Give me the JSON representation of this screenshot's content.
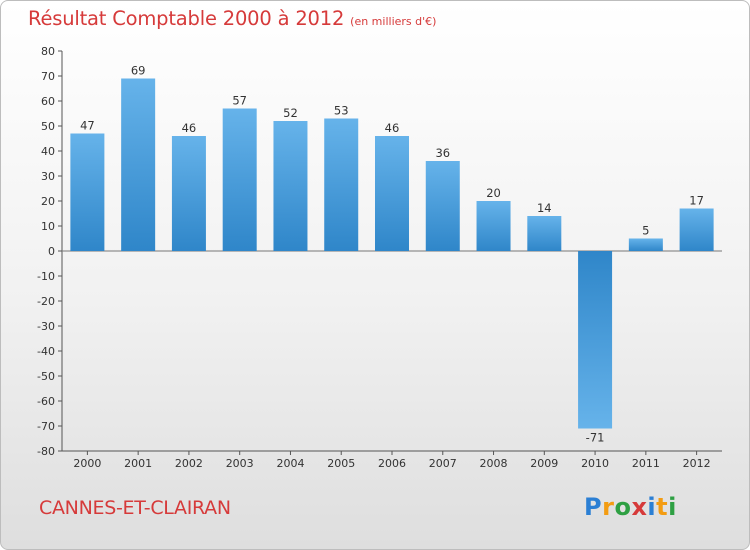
{
  "title": "Résultat Comptable 2000 à 2012",
  "subtitle": "(en milliers d'€)",
  "commune": "CANNES-ET-CLAIRAN",
  "logo": {
    "text": "Proxiti",
    "letters": [
      {
        "ch": "P",
        "color": "#2b7fd4"
      },
      {
        "ch": "r",
        "color": "#f39c12"
      },
      {
        "ch": "o",
        "color": "#2ea043"
      },
      {
        "ch": "x",
        "color": "#d63a3a"
      },
      {
        "ch": "i",
        "color": "#2b7fd4"
      },
      {
        "ch": "t",
        "color": "#f39c12"
      },
      {
        "ch": "i",
        "color": "#2ea043"
      }
    ]
  },
  "colors": {
    "bar_light": "#66b3ea",
    "bar_dark": "#2f86c9",
    "title": "#d63a3a"
  },
  "chart_data": {
    "type": "bar",
    "title": "Résultat Comptable 2000 à 2012",
    "subtitle": "(en milliers d'€)",
    "xlabel": "",
    "ylabel": "",
    "categories": [
      "2000",
      "2001",
      "2002",
      "2003",
      "2004",
      "2005",
      "2006",
      "2007",
      "2008",
      "2009",
      "2010",
      "2011",
      "2012"
    ],
    "values": [
      47,
      69,
      46,
      57,
      52,
      53,
      46,
      36,
      20,
      14,
      -71,
      5,
      17
    ],
    "ylim": [
      -80,
      80
    ],
    "yticks": [
      80,
      70,
      60,
      50,
      40,
      30,
      20,
      10,
      0,
      -10,
      -20,
      -30,
      -40,
      -50,
      -60,
      -70,
      -80
    ],
    "grid": false
  }
}
